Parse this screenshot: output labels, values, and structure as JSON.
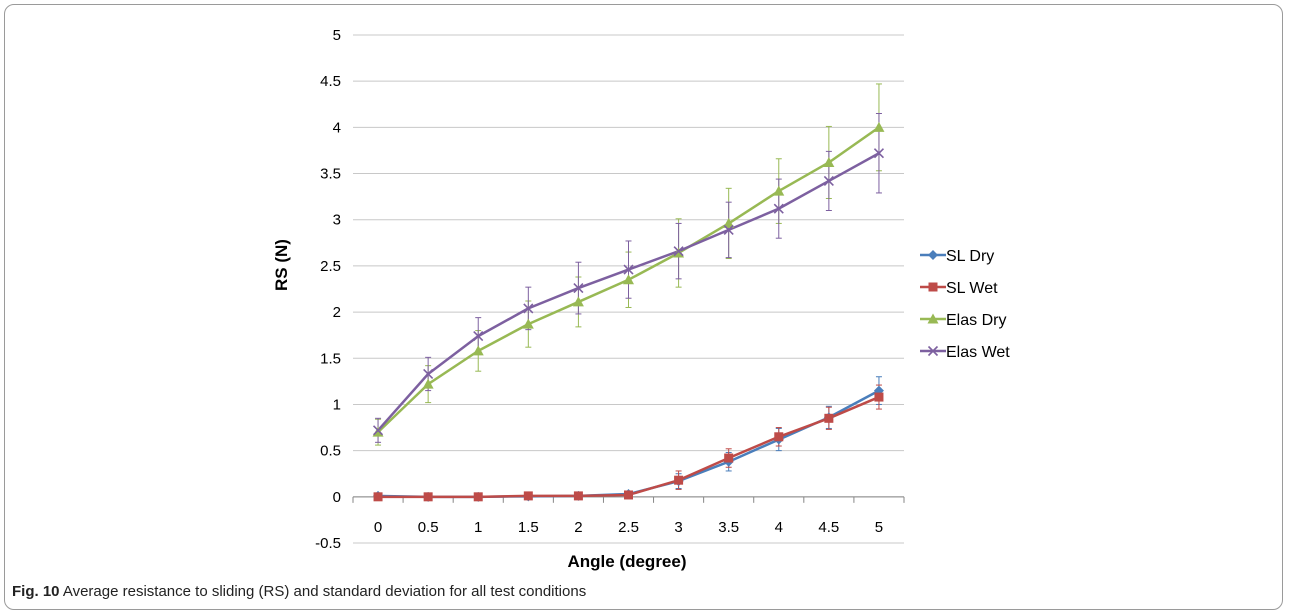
{
  "caption": {
    "label": "Fig. 10",
    "text": "Average resistance to sliding (RS) and standard deviation for all test conditions"
  },
  "chart_data": {
    "type": "line",
    "title": "",
    "xlabel": "Angle (degree)",
    "ylabel": "RS (N)",
    "x": [
      0,
      0.5,
      1,
      1.5,
      2,
      2.5,
      3,
      3.5,
      4,
      4.5,
      5
    ],
    "x_tick_labels": [
      "0",
      "0.5",
      "1",
      "1.5",
      "2",
      "2.5",
      "3",
      "3.5",
      "4",
      "4.5",
      "5"
    ],
    "ylim": [
      -0.5,
      5
    ],
    "y_ticks": [
      -0.5,
      0,
      0.5,
      1,
      1.5,
      2,
      2.5,
      3,
      3.5,
      4,
      4.5,
      5
    ],
    "y_tick_labels": [
      "-0.5",
      "0",
      "0.5",
      "1",
      "1.5",
      "2",
      "2.5",
      "3",
      "3.5",
      "4",
      "4.5",
      "5"
    ],
    "grid": "horizontal",
    "legend_position": "right",
    "series": [
      {
        "name": "SL Dry",
        "color": "#4a7ebb",
        "marker": "diamond",
        "values": [
          0.01,
          0.0,
          0.0,
          0.005,
          0.01,
          0.03,
          0.17,
          0.38,
          0.62,
          0.86,
          1.15
        ],
        "error": [
          0.01,
          0.01,
          0.01,
          0.01,
          0.01,
          0.03,
          0.08,
          0.1,
          0.12,
          0.12,
          0.15
        ]
      },
      {
        "name": "SL Wet",
        "color": "#be4b48",
        "marker": "square",
        "values": [
          0.0,
          0.0,
          0.0,
          0.01,
          0.01,
          0.02,
          0.18,
          0.42,
          0.65,
          0.85,
          1.08
        ],
        "error": [
          0.01,
          0.01,
          0.01,
          0.01,
          0.01,
          0.02,
          0.1,
          0.1,
          0.1,
          0.12,
          0.13
        ]
      },
      {
        "name": "Elas Dry",
        "color": "#98b954",
        "marker": "triangle",
        "values": [
          0.7,
          1.22,
          1.58,
          1.87,
          2.11,
          2.35,
          2.64,
          2.96,
          3.31,
          3.62,
          4.0
        ],
        "error": [
          0.14,
          0.2,
          0.22,
          0.25,
          0.27,
          0.3,
          0.37,
          0.38,
          0.35,
          0.39,
          0.47
        ]
      },
      {
        "name": "Elas Wet",
        "color": "#7d60a0",
        "marker": "x",
        "values": [
          0.72,
          1.33,
          1.74,
          2.04,
          2.26,
          2.46,
          2.66,
          2.89,
          3.12,
          3.42,
          3.72
        ],
        "error": [
          0.13,
          0.18,
          0.2,
          0.23,
          0.28,
          0.31,
          0.3,
          0.3,
          0.32,
          0.32,
          0.43
        ]
      }
    ]
  }
}
